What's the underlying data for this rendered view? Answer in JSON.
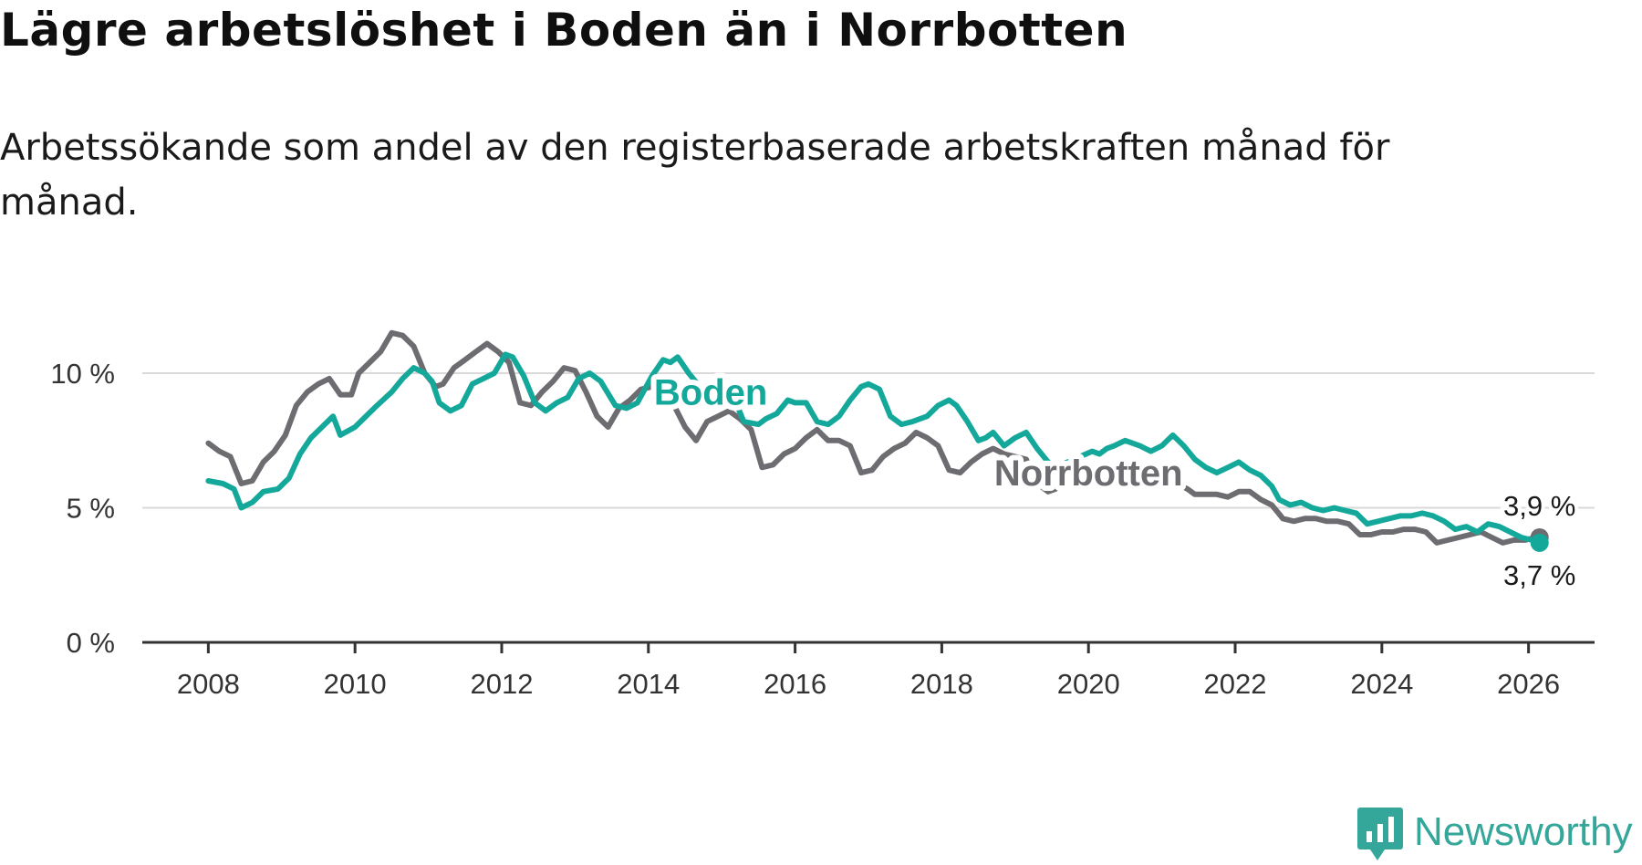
{
  "title": "Lägre arbetslöshet i Boden än i Norrbotten",
  "subtitle": "Arbetssökande som andel av den registerbaserade arbetskraften månad för månad.",
  "brand": {
    "name": "Newsworthy",
    "color": "#35a79a",
    "icon": "newsworthy-logo-icon"
  },
  "colors": {
    "boden": "#14a89b",
    "norrbotten": "#6d6c70",
    "grid": "#d9d9d9",
    "axis": "#333333"
  },
  "chart_data": {
    "type": "line",
    "title": "Lägre arbetslöshet i Boden än i Norrbotten",
    "xlabel": "",
    "ylabel": "",
    "xlim": [
      2007.1,
      2026.9
    ],
    "ylim": [
      0,
      12
    ],
    "x_ticks": [
      2008,
      2010,
      2012,
      2014,
      2016,
      2018,
      2020,
      2022,
      2024,
      2026
    ],
    "x_tick_labels": [
      "2008",
      "2010",
      "2012",
      "2014",
      "2016",
      "2018",
      "2020",
      "2022",
      "2024",
      "2026"
    ],
    "y_ticks": [
      0,
      5,
      10
    ],
    "y_tick_labels": [
      "0 %",
      "5 %",
      "10 %"
    ],
    "series": [
      {
        "name": "Boden",
        "label": "Boden",
        "end_label": "3,7 %",
        "points": [
          [
            2008.0,
            6.0
          ],
          [
            2008.2,
            5.9
          ],
          [
            2008.35,
            5.7
          ],
          [
            2008.45,
            5.0
          ],
          [
            2008.6,
            5.2
          ],
          [
            2008.75,
            5.6
          ],
          [
            2008.95,
            5.7
          ],
          [
            2009.1,
            6.1
          ],
          [
            2009.25,
            7.0
          ],
          [
            2009.4,
            7.6
          ],
          [
            2009.55,
            8.0
          ],
          [
            2009.7,
            8.4
          ],
          [
            2009.8,
            7.7
          ],
          [
            2010.0,
            8.0
          ],
          [
            2010.15,
            8.4
          ],
          [
            2010.3,
            8.8
          ],
          [
            2010.5,
            9.3
          ],
          [
            2010.65,
            9.8
          ],
          [
            2010.8,
            10.2
          ],
          [
            2010.95,
            10.0
          ],
          [
            2011.05,
            9.7
          ],
          [
            2011.15,
            8.9
          ],
          [
            2011.3,
            8.6
          ],
          [
            2011.45,
            8.8
          ],
          [
            2011.6,
            9.6
          ],
          [
            2011.75,
            9.8
          ],
          [
            2011.9,
            10.0
          ],
          [
            2012.05,
            10.7
          ],
          [
            2012.15,
            10.6
          ],
          [
            2012.3,
            9.9
          ],
          [
            2012.45,
            8.9
          ],
          [
            2012.6,
            8.6
          ],
          [
            2012.75,
            8.9
          ],
          [
            2012.9,
            9.1
          ],
          [
            2013.05,
            9.8
          ],
          [
            2013.2,
            10.0
          ],
          [
            2013.35,
            9.7
          ],
          [
            2013.55,
            8.8
          ],
          [
            2013.7,
            8.7
          ],
          [
            2013.85,
            8.9
          ],
          [
            2014.05,
            9.9
          ],
          [
            2014.2,
            10.5
          ],
          [
            2014.3,
            10.4
          ],
          [
            2014.4,
            10.6
          ],
          [
            2014.55,
            10.0
          ],
          [
            2014.7,
            9.5
          ],
          [
            2014.85,
            9.3
          ],
          [
            2015.0,
            9.5
          ],
          [
            2015.15,
            9.2
          ],
          [
            2015.3,
            8.2
          ],
          [
            2015.5,
            8.1
          ],
          [
            2015.6,
            8.3
          ],
          [
            2015.75,
            8.5
          ],
          [
            2015.9,
            9.0
          ],
          [
            2016.0,
            8.9
          ],
          [
            2016.15,
            8.9
          ],
          [
            2016.3,
            8.2
          ],
          [
            2016.45,
            8.1
          ],
          [
            2016.6,
            8.4
          ],
          [
            2016.75,
            9.0
          ],
          [
            2016.9,
            9.5
          ],
          [
            2017.0,
            9.6
          ],
          [
            2017.15,
            9.4
          ],
          [
            2017.3,
            8.4
          ],
          [
            2017.45,
            8.1
          ],
          [
            2017.6,
            8.2
          ],
          [
            2017.8,
            8.4
          ],
          [
            2017.95,
            8.8
          ],
          [
            2018.1,
            9.0
          ],
          [
            2018.2,
            8.8
          ],
          [
            2018.35,
            8.2
          ],
          [
            2018.5,
            7.5
          ],
          [
            2018.6,
            7.6
          ],
          [
            2018.7,
            7.8
          ],
          [
            2018.85,
            7.3
          ],
          [
            2019.0,
            7.6
          ],
          [
            2019.15,
            7.8
          ],
          [
            2019.3,
            7.2
          ],
          [
            2019.45,
            6.7
          ],
          [
            2019.55,
            6.5
          ],
          [
            2020.05,
            7.1
          ],
          [
            2020.15,
            7.0
          ],
          [
            2020.25,
            7.2
          ],
          [
            2020.35,
            7.3
          ],
          [
            2020.5,
            7.5
          ],
          [
            2020.7,
            7.3
          ],
          [
            2020.85,
            7.1
          ],
          [
            2021.0,
            7.3
          ],
          [
            2021.15,
            7.7
          ],
          [
            2021.3,
            7.3
          ],
          [
            2021.45,
            6.8
          ],
          [
            2021.6,
            6.5
          ],
          [
            2021.75,
            6.3
          ],
          [
            2021.9,
            6.5
          ],
          [
            2022.05,
            6.7
          ],
          [
            2022.2,
            6.4
          ],
          [
            2022.35,
            6.2
          ],
          [
            2022.5,
            5.8
          ],
          [
            2022.6,
            5.3
          ],
          [
            2022.75,
            5.1
          ],
          [
            2022.9,
            5.2
          ],
          [
            2023.05,
            5.0
          ],
          [
            2023.2,
            4.9
          ],
          [
            2023.35,
            5.0
          ],
          [
            2023.5,
            4.9
          ],
          [
            2023.65,
            4.8
          ],
          [
            2023.8,
            4.4
          ],
          [
            2023.95,
            4.5
          ],
          [
            2024.1,
            4.6
          ],
          [
            2024.25,
            4.7
          ],
          [
            2024.4,
            4.7
          ],
          [
            2024.55,
            4.8
          ],
          [
            2024.7,
            4.7
          ],
          [
            2024.85,
            4.5
          ],
          [
            2025.0,
            4.2
          ],
          [
            2025.15,
            4.3
          ],
          [
            2025.3,
            4.1
          ],
          [
            2025.45,
            4.4
          ],
          [
            2025.6,
            4.3
          ],
          [
            2025.75,
            4.1
          ],
          [
            2025.9,
            3.9
          ],
          [
            2026.05,
            3.8
          ],
          [
            2026.15,
            3.7
          ]
        ]
      },
      {
        "name": "Norrbotten",
        "label": "Norrbotten",
        "end_label": "3,9 %",
        "points": [
          [
            2008.0,
            7.4
          ],
          [
            2008.15,
            7.1
          ],
          [
            2008.3,
            6.9
          ],
          [
            2008.45,
            5.9
          ],
          [
            2008.6,
            6.0
          ],
          [
            2008.75,
            6.7
          ],
          [
            2008.9,
            7.1
          ],
          [
            2009.05,
            7.7
          ],
          [
            2009.2,
            8.8
          ],
          [
            2009.35,
            9.3
          ],
          [
            2009.5,
            9.6
          ],
          [
            2009.65,
            9.8
          ],
          [
            2009.8,
            9.2
          ],
          [
            2009.95,
            9.2
          ],
          [
            2010.05,
            10.0
          ],
          [
            2010.2,
            10.4
          ],
          [
            2010.35,
            10.8
          ],
          [
            2010.5,
            11.5
          ],
          [
            2010.65,
            11.4
          ],
          [
            2010.8,
            11.0
          ],
          [
            2010.95,
            10.0
          ],
          [
            2011.1,
            9.5
          ],
          [
            2011.2,
            9.6
          ],
          [
            2011.35,
            10.2
          ],
          [
            2011.5,
            10.5
          ],
          [
            2011.65,
            10.8
          ],
          [
            2011.8,
            11.1
          ],
          [
            2011.95,
            10.8
          ],
          [
            2012.1,
            10.4
          ],
          [
            2012.25,
            8.9
          ],
          [
            2012.4,
            8.8
          ],
          [
            2012.55,
            9.3
          ],
          [
            2012.7,
            9.7
          ],
          [
            2012.85,
            10.2
          ],
          [
            2013.0,
            10.1
          ],
          [
            2013.15,
            9.3
          ],
          [
            2013.3,
            8.4
          ],
          [
            2013.45,
            8.0
          ],
          [
            2013.6,
            8.7
          ],
          [
            2013.75,
            9.0
          ],
          [
            2013.9,
            9.4
          ],
          [
            2014.05,
            9.5
          ],
          [
            2014.2,
            9.3
          ],
          [
            2014.35,
            8.8
          ],
          [
            2014.5,
            8.0
          ],
          [
            2014.65,
            7.5
          ],
          [
            2014.8,
            8.2
          ],
          [
            2014.95,
            8.4
          ],
          [
            2015.1,
            8.6
          ],
          [
            2015.25,
            8.3
          ],
          [
            2015.4,
            7.9
          ],
          [
            2015.55,
            6.5
          ],
          [
            2015.7,
            6.6
          ],
          [
            2015.85,
            7.0
          ],
          [
            2016.0,
            7.2
          ],
          [
            2016.15,
            7.6
          ],
          [
            2016.3,
            7.9
          ],
          [
            2016.45,
            7.5
          ],
          [
            2016.6,
            7.5
          ],
          [
            2016.75,
            7.3
          ],
          [
            2016.9,
            6.3
          ],
          [
            2017.05,
            6.4
          ],
          [
            2017.2,
            6.9
          ],
          [
            2017.35,
            7.2
          ],
          [
            2017.5,
            7.4
          ],
          [
            2017.65,
            7.8
          ],
          [
            2017.8,
            7.6
          ],
          [
            2017.95,
            7.3
          ],
          [
            2018.1,
            6.4
          ],
          [
            2018.25,
            6.3
          ],
          [
            2018.4,
            6.7
          ],
          [
            2018.55,
            7.0
          ],
          [
            2018.7,
            7.2
          ],
          [
            2018.85,
            7.0
          ],
          [
            2019.0,
            6.9
          ],
          [
            2019.15,
            6.8
          ],
          [
            2019.3,
            5.9
          ],
          [
            2019.45,
            5.6
          ],
          [
            2019.55,
            5.7
          ],
          [
            2019.7,
            6.0
          ],
          [
            2019.85,
            6.2
          ],
          [
            2020.0,
            6.3
          ],
          [
            2020.3,
            6.4
          ],
          [
            2020.6,
            6.2
          ],
          [
            2020.9,
            6.0
          ],
          [
            2021.2,
            5.9
          ],
          [
            2021.35,
            5.7
          ],
          [
            2021.45,
            5.5
          ],
          [
            2021.6,
            5.5
          ],
          [
            2021.75,
            5.5
          ],
          [
            2021.9,
            5.4
          ],
          [
            2022.05,
            5.6
          ],
          [
            2022.2,
            5.6
          ],
          [
            2022.35,
            5.3
          ],
          [
            2022.5,
            5.1
          ],
          [
            2022.65,
            4.6
          ],
          [
            2022.8,
            4.5
          ],
          [
            2022.95,
            4.6
          ],
          [
            2023.1,
            4.6
          ],
          [
            2023.25,
            4.5
          ],
          [
            2023.4,
            4.5
          ],
          [
            2023.55,
            4.4
          ],
          [
            2023.7,
            4.0
          ],
          [
            2023.85,
            4.0
          ],
          [
            2024.0,
            4.1
          ],
          [
            2024.15,
            4.1
          ],
          [
            2024.3,
            4.2
          ],
          [
            2024.45,
            4.2
          ],
          [
            2024.6,
            4.1
          ],
          [
            2024.75,
            3.7
          ],
          [
            2024.9,
            3.8
          ],
          [
            2025.05,
            3.9
          ],
          [
            2025.2,
            4.0
          ],
          [
            2025.35,
            4.1
          ],
          [
            2025.5,
            3.9
          ],
          [
            2025.65,
            3.7
          ],
          [
            2025.8,
            3.8
          ],
          [
            2025.95,
            3.8
          ],
          [
            2026.1,
            3.9
          ],
          [
            2026.15,
            3.9
          ]
        ]
      }
    ],
    "annotations": [
      {
        "text": "Boden",
        "series": "Boden",
        "at_x": 2014.85
      },
      {
        "text": "Norrbotten",
        "series": "Norrbotten",
        "at_x": 2020.0
      }
    ],
    "grid": true,
    "legend": "inline"
  }
}
